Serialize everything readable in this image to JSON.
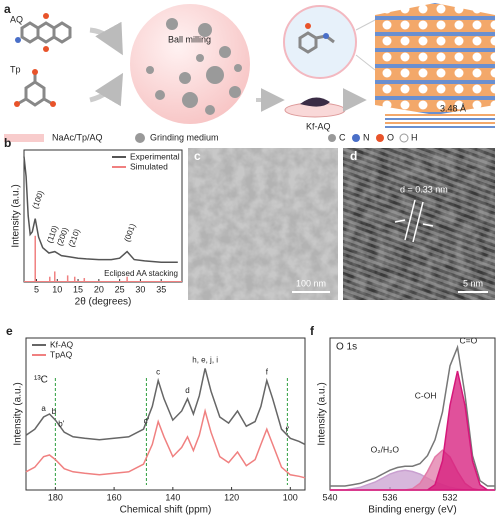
{
  "panel_a": {
    "label": "a",
    "molecules": [
      "AQ",
      "Tp"
    ],
    "process": "Ball milling",
    "product": "Kf-AQ",
    "spacing": "3.48 Å",
    "legend": [
      "NaAc/Tp/AQ",
      "Grinding medium"
    ],
    "atoms": [
      "C",
      "N",
      "O",
      "H"
    ]
  },
  "panel_c": {
    "label": "c",
    "scale": "100 nm"
  },
  "panel_d": {
    "label": "d",
    "spacing": "d = 0.33 nm",
    "scale": "5 nm"
  },
  "chart_data": [
    {
      "type": "line",
      "label": "b",
      "xlabel": "2θ (degrees)",
      "ylabel": "Intensity (a.u.)",
      "xlim": [
        2,
        40
      ],
      "ylim": [
        0,
        10
      ],
      "xticks": [
        5,
        10,
        15,
        20,
        25,
        30,
        35
      ],
      "x": [
        2,
        2.5,
        3,
        3.5,
        4,
        4.7,
        5.5,
        6.5,
        8,
        9.4,
        11,
        13,
        15,
        17,
        20,
        23,
        25,
        26.8,
        28.5,
        31,
        35,
        39
      ],
      "series": [
        {
          "name": "Experimental",
          "color": "#555555",
          "values": [
            9.5,
            8,
            5,
            3.6,
            3.8,
            4.8,
            3.4,
            2.6,
            2.2,
            2.3,
            2.0,
            1.9,
            1.8,
            1.75,
            1.7,
            1.7,
            1.8,
            2.3,
            1.7,
            1.6,
            1.5,
            1.5
          ]
        },
        {
          "name": "Simulated",
          "color": "#f08080",
          "style": "stick",
          "x": [
            4.7,
            8.2,
            9.4,
            12.5,
            14.2,
            16.5,
            26.8
          ],
          "values": [
            3.5,
            0.4,
            0.8,
            0.5,
            0.4,
            0.3,
            0.4
          ]
        }
      ],
      "annotations": [
        {
          "text": "(100)",
          "x": 4.7
        },
        {
          "text": "(110)",
          "x": 8.2
        },
        {
          "text": "(200)",
          "x": 10.6
        },
        {
          "text": "(210)",
          "x": 13.4
        },
        {
          "text": "(001)",
          "x": 26.8
        }
      ],
      "note": "Eclipsed AA stacking",
      "legend": "upper right"
    },
    {
      "type": "line",
      "label": "e",
      "xlabel": "Chemical shift (ppm)",
      "ylabel": "Intensity (a.u.)",
      "xlim": [
        190,
        95
      ],
      "ylim": [
        0,
        1
      ],
      "xticks": [
        180,
        160,
        140,
        120,
        100
      ],
      "x": [
        190,
        187,
        184,
        182,
        180,
        177,
        174,
        170,
        165,
        160,
        155,
        150,
        147,
        145,
        143,
        140,
        137,
        135,
        133,
        131,
        129,
        127,
        124,
        121,
        118,
        115,
        112,
        110,
        108,
        106,
        103,
        100,
        97,
        95
      ],
      "series": [
        {
          "name": "Kf-AQ",
          "color": "#666666",
          "values": [
            0.36,
            0.4,
            0.48,
            0.5,
            0.46,
            0.38,
            0.35,
            0.34,
            0.33,
            0.34,
            0.35,
            0.4,
            0.55,
            0.72,
            0.6,
            0.46,
            0.52,
            0.6,
            0.5,
            0.62,
            0.8,
            0.65,
            0.48,
            0.44,
            0.52,
            0.42,
            0.45,
            0.55,
            0.72,
            0.6,
            0.4,
            0.34,
            0.32,
            0.3
          ]
        },
        {
          "name": "TpAQ",
          "color": "#f08080",
          "values": [
            0.12,
            0.15,
            0.22,
            0.23,
            0.2,
            0.14,
            0.12,
            0.11,
            0.1,
            0.11,
            0.12,
            0.17,
            0.3,
            0.45,
            0.35,
            0.22,
            0.28,
            0.35,
            0.26,
            0.36,
            0.52,
            0.38,
            0.22,
            0.18,
            0.25,
            0.16,
            0.2,
            0.3,
            0.4,
            0.3,
            0.15,
            0.1,
            0.09,
            0.08
          ]
        }
      ],
      "annotations": [
        {
          "text": "a",
          "x": 184,
          "color": "#e05050"
        },
        {
          "text": "b",
          "x": 180.5,
          "color": "#e05050"
        },
        {
          "text": "b'",
          "x": 178,
          "color": "#e05050"
        },
        {
          "text": "c'",
          "x": 149
        },
        {
          "text": "c",
          "x": 145
        },
        {
          "text": "d",
          "x": 135
        },
        {
          "text": "h, e, j, i",
          "x": 129
        },
        {
          "text": "f",
          "x": 108
        },
        {
          "text": "f'",
          "x": 101,
          "color": "#e05050"
        }
      ],
      "markers": {
        "x": [
          180,
          149,
          101
        ],
        "color": "#2e9e3e"
      },
      "note": "¹³C",
      "legend": "upper left"
    },
    {
      "type": "line",
      "label": "f",
      "title": "O 1s",
      "xlabel": "Binding energy (eV)",
      "ylabel": "Intensity (a.u.)",
      "xlim": [
        540,
        529
      ],
      "ylim": [
        0,
        1.15
      ],
      "xticks": [
        540,
        536,
        532
      ],
      "x": [
        540,
        539.5,
        539,
        538.5,
        538,
        537.5,
        537,
        536.5,
        536,
        535.5,
        535,
        534.5,
        534,
        533.5,
        533,
        532.5,
        532,
        531.5,
        531,
        530.5,
        530,
        529.5,
        529
      ],
      "series": [
        {
          "color": "#777777",
          "values": [
            0.03,
            0.03,
            0.03,
            0.04,
            0.05,
            0.07,
            0.09,
            0.12,
            0.15,
            0.17,
            0.18,
            0.18,
            0.2,
            0.26,
            0.38,
            0.59,
            0.94,
            1.08,
            0.72,
            0.26,
            0.07,
            0.03,
            0.03
          ]
        },
        {
          "name": "O₂/H₂O",
          "color": "#c9a0d0",
          "fill": true,
          "values": [
            0,
            0,
            0,
            0.01,
            0.02,
            0.04,
            0.06,
            0.09,
            0.12,
            0.14,
            0.15,
            0.14,
            0.12,
            0.09,
            0.06,
            0.04,
            0.02,
            0.01,
            0,
            0,
            0,
            0,
            0
          ]
        },
        {
          "name": "C-OH",
          "color": "#e27aa8",
          "fill": true,
          "values": [
            0,
            0,
            0,
            0,
            0,
            0,
            0,
            0,
            0,
            0,
            0,
            0.01,
            0.05,
            0.14,
            0.25,
            0.3,
            0.25,
            0.14,
            0.05,
            0.01,
            0,
            0,
            0
          ]
        },
        {
          "name": "C=O",
          "color": "#d6177a",
          "fill": true,
          "values": [
            0,
            0,
            0,
            0,
            0,
            0,
            0,
            0,
            0,
            0,
            0,
            0,
            0,
            0,
            0.04,
            0.22,
            0.64,
            0.9,
            0.64,
            0.22,
            0.04,
            0,
            0
          ]
        }
      ],
      "legend": "labels"
    }
  ]
}
